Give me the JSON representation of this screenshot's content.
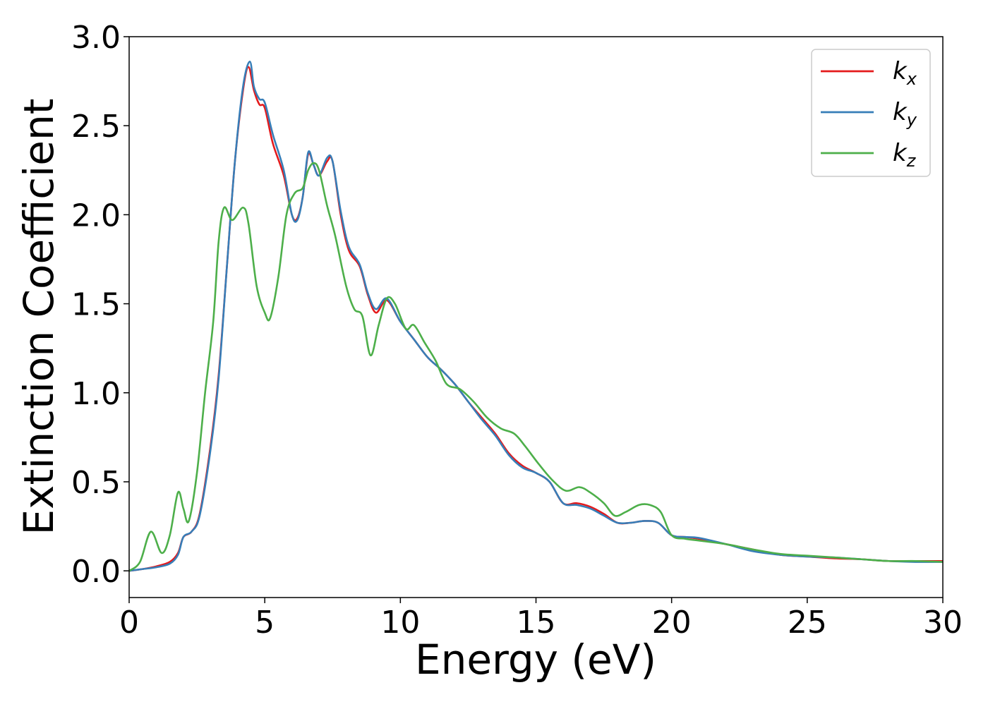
{
  "chart_data": {
    "type": "line",
    "xlabel": "Energy (eV)",
    "ylabel": "Extinction Coefficient",
    "xlim": [
      0,
      30
    ],
    "ylim": [
      -0.15,
      3.0
    ],
    "xticks": [
      0,
      5,
      10,
      15,
      20,
      25,
      30
    ],
    "xtick_labels": [
      "0",
      "5",
      "10",
      "15",
      "20",
      "25",
      "30"
    ],
    "yticks": [
      0.0,
      0.5,
      1.0,
      1.5,
      2.0,
      2.5,
      3.0
    ],
    "ytick_labels": [
      "0.0",
      "0.5",
      "1.0",
      "1.5",
      "2.0",
      "2.5",
      "3.0"
    ],
    "grid": false,
    "legend_position": "top-right",
    "series": [
      {
        "name": "k_x",
        "label_base": "k",
        "label_sub": "x",
        "color": "#e41a1c",
        "points": [
          [
            0,
            0
          ],
          [
            0.5,
            0.01
          ],
          [
            1,
            0.025
          ],
          [
            1.5,
            0.05
          ],
          [
            1.8,
            0.1
          ],
          [
            2,
            0.19
          ],
          [
            2.3,
            0.22
          ],
          [
            2.6,
            0.32
          ],
          [
            3,
            0.7
          ],
          [
            3.3,
            1.1
          ],
          [
            3.6,
            1.7
          ],
          [
            3.9,
            2.3
          ],
          [
            4.2,
            2.7
          ],
          [
            4.4,
            2.83
          ],
          [
            4.6,
            2.7
          ],
          [
            4.8,
            2.62
          ],
          [
            5,
            2.6
          ],
          [
            5.3,
            2.4
          ],
          [
            5.7,
            2.22
          ],
          [
            6,
            2.0
          ],
          [
            6.2,
            1.98
          ],
          [
            6.4,
            2.1
          ],
          [
            6.6,
            2.34
          ],
          [
            6.8,
            2.28
          ],
          [
            7,
            2.22
          ],
          [
            7.3,
            2.3
          ],
          [
            7.5,
            2.3
          ],
          [
            7.8,
            2.0
          ],
          [
            8.1,
            1.8
          ],
          [
            8.5,
            1.71
          ],
          [
            8.8,
            1.55
          ],
          [
            9.1,
            1.45
          ],
          [
            9.5,
            1.52
          ],
          [
            10,
            1.4
          ],
          [
            10.5,
            1.3
          ],
          [
            11,
            1.2
          ],
          [
            11.5,
            1.13
          ],
          [
            12,
            1.05
          ],
          [
            12.5,
            0.95
          ],
          [
            13,
            0.86
          ],
          [
            13.5,
            0.77
          ],
          [
            14,
            0.66
          ],
          [
            14.5,
            0.59
          ],
          [
            15,
            0.55
          ],
          [
            15.5,
            0.5
          ],
          [
            16,
            0.38
          ],
          [
            16.5,
            0.38
          ],
          [
            17,
            0.36
          ],
          [
            17.5,
            0.32
          ],
          [
            18,
            0.27
          ],
          [
            18.5,
            0.27
          ],
          [
            19,
            0.28
          ],
          [
            19.5,
            0.27
          ],
          [
            20,
            0.2
          ],
          [
            20.5,
            0.19
          ],
          [
            21,
            0.18
          ],
          [
            22,
            0.15
          ],
          [
            23,
            0.12
          ],
          [
            24,
            0.09
          ],
          [
            25,
            0.08
          ],
          [
            26,
            0.07
          ],
          [
            27,
            0.065
          ],
          [
            28,
            0.055
          ],
          [
            29,
            0.055
          ],
          [
            30,
            0.055
          ]
        ]
      },
      {
        "name": "k_y",
        "label_base": "k",
        "label_sub": "y",
        "color": "#377eb8",
        "points": [
          [
            0,
            0
          ],
          [
            0.5,
            0.01
          ],
          [
            1,
            0.02
          ],
          [
            1.5,
            0.04
          ],
          [
            1.8,
            0.09
          ],
          [
            2,
            0.19
          ],
          [
            2.3,
            0.22
          ],
          [
            2.6,
            0.31
          ],
          [
            3,
            0.68
          ],
          [
            3.3,
            1.08
          ],
          [
            3.6,
            1.7
          ],
          [
            3.9,
            2.3
          ],
          [
            4.2,
            2.72
          ],
          [
            4.45,
            2.86
          ],
          [
            4.6,
            2.72
          ],
          [
            4.8,
            2.65
          ],
          [
            5,
            2.63
          ],
          [
            5.3,
            2.45
          ],
          [
            5.7,
            2.25
          ],
          [
            6,
            2.0
          ],
          [
            6.2,
            1.97
          ],
          [
            6.4,
            2.1
          ],
          [
            6.6,
            2.35
          ],
          [
            6.8,
            2.28
          ],
          [
            7,
            2.22
          ],
          [
            7.3,
            2.32
          ],
          [
            7.5,
            2.3
          ],
          [
            7.8,
            2.02
          ],
          [
            8.1,
            1.82
          ],
          [
            8.5,
            1.72
          ],
          [
            8.8,
            1.56
          ],
          [
            9.1,
            1.47
          ],
          [
            9.5,
            1.53
          ],
          [
            10,
            1.4
          ],
          [
            10.5,
            1.3
          ],
          [
            11,
            1.2
          ],
          [
            11.5,
            1.13
          ],
          [
            12,
            1.05
          ],
          [
            12.5,
            0.95
          ],
          [
            13,
            0.85
          ],
          [
            13.5,
            0.76
          ],
          [
            14,
            0.65
          ],
          [
            14.5,
            0.58
          ],
          [
            15,
            0.55
          ],
          [
            15.5,
            0.5
          ],
          [
            16,
            0.38
          ],
          [
            16.5,
            0.37
          ],
          [
            17,
            0.35
          ],
          [
            17.5,
            0.31
          ],
          [
            18,
            0.27
          ],
          [
            18.5,
            0.27
          ],
          [
            19,
            0.28
          ],
          [
            19.5,
            0.27
          ],
          [
            20,
            0.2
          ],
          [
            20.5,
            0.19
          ],
          [
            21,
            0.185
          ],
          [
            22,
            0.15
          ],
          [
            23,
            0.11
          ],
          [
            24,
            0.09
          ],
          [
            25,
            0.08
          ],
          [
            26,
            0.075
          ],
          [
            27,
            0.065
          ],
          [
            28,
            0.055
          ],
          [
            29,
            0.05
          ],
          [
            30,
            0.05
          ]
        ]
      },
      {
        "name": "k_z",
        "label_base": "k",
        "label_sub": "z",
        "color": "#4daf4a",
        "points": [
          [
            0,
            0
          ],
          [
            0.4,
            0.05
          ],
          [
            0.8,
            0.22
          ],
          [
            1.2,
            0.1
          ],
          [
            1.5,
            0.2
          ],
          [
            1.8,
            0.44
          ],
          [
            2,
            0.35
          ],
          [
            2.2,
            0.28
          ],
          [
            2.5,
            0.55
          ],
          [
            2.8,
            1.0
          ],
          [
            3.1,
            1.4
          ],
          [
            3.3,
            1.85
          ],
          [
            3.5,
            2.04
          ],
          [
            3.8,
            1.97
          ],
          [
            4.2,
            2.04
          ],
          [
            4.4,
            1.95
          ],
          [
            4.7,
            1.6
          ],
          [
            5,
            1.45
          ],
          [
            5.2,
            1.42
          ],
          [
            5.5,
            1.65
          ],
          [
            5.8,
            2.0
          ],
          [
            6.1,
            2.12
          ],
          [
            6.4,
            2.15
          ],
          [
            6.6,
            2.25
          ],
          [
            6.8,
            2.29
          ],
          [
            7,
            2.25
          ],
          [
            7.3,
            2.05
          ],
          [
            7.6,
            1.88
          ],
          [
            8,
            1.6
          ],
          [
            8.3,
            1.47
          ],
          [
            8.6,
            1.43
          ],
          [
            8.9,
            1.21
          ],
          [
            9.2,
            1.38
          ],
          [
            9.5,
            1.53
          ],
          [
            9.8,
            1.5
          ],
          [
            10.2,
            1.36
          ],
          [
            10.5,
            1.38
          ],
          [
            10.9,
            1.28
          ],
          [
            11.3,
            1.18
          ],
          [
            11.7,
            1.05
          ],
          [
            12.2,
            1.02
          ],
          [
            12.7,
            0.95
          ],
          [
            13.2,
            0.86
          ],
          [
            13.7,
            0.8
          ],
          [
            14.2,
            0.77
          ],
          [
            14.6,
            0.7
          ],
          [
            15.1,
            0.6
          ],
          [
            15.6,
            0.51
          ],
          [
            16.1,
            0.45
          ],
          [
            16.6,
            0.47
          ],
          [
            17,
            0.44
          ],
          [
            17.5,
            0.38
          ],
          [
            17.9,
            0.31
          ],
          [
            18.3,
            0.33
          ],
          [
            18.8,
            0.37
          ],
          [
            19.2,
            0.37
          ],
          [
            19.6,
            0.33
          ],
          [
            20,
            0.2
          ],
          [
            20.5,
            0.18
          ],
          [
            21,
            0.17
          ],
          [
            22,
            0.15
          ],
          [
            23,
            0.12
          ],
          [
            24,
            0.095
          ],
          [
            25,
            0.085
          ],
          [
            26,
            0.075
          ],
          [
            27,
            0.065
          ],
          [
            28,
            0.055
          ],
          [
            29,
            0.055
          ],
          [
            30,
            0.05
          ]
        ]
      }
    ]
  }
}
